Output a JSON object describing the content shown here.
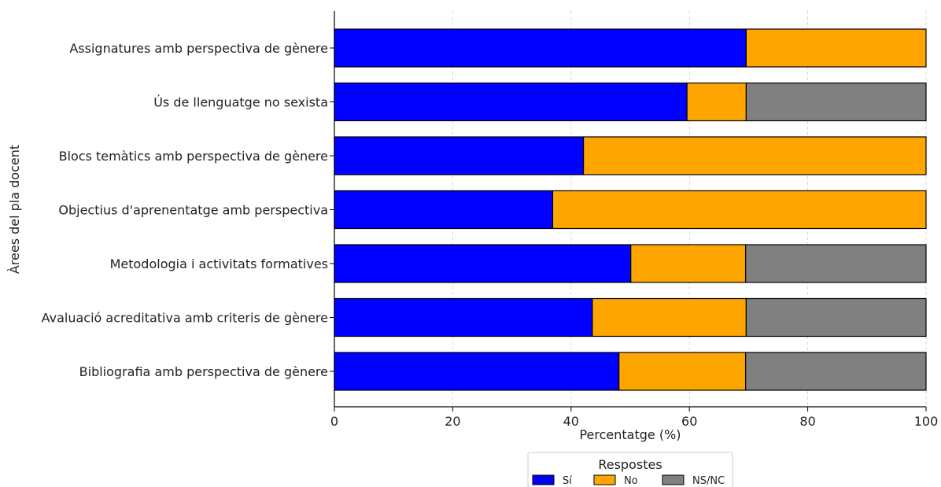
{
  "chart_data": {
    "type": "bar",
    "orientation": "horizontal",
    "stacked": true,
    "title": "",
    "xlabel": "Percentatge (%)",
    "ylabel": "Àrees del pla docent",
    "xlim": [
      0,
      100
    ],
    "xticks": [
      0,
      20,
      40,
      60,
      80,
      100
    ],
    "grid": true,
    "categories": [
      "Assignatures amb perspectiva de gènere",
      "Ús de llenguatge no sexista",
      "Blocs temàtics amb perspectiva de gènere",
      "Objectius d'aprenentatge amb perspectiva",
      "Metodologia i activitats formatives",
      "Avaluació acreditativa amb criteris de gènere",
      "Bibliografia amb perspectiva de gènere"
    ],
    "series": [
      {
        "name": "Sí",
        "color": "#0000ff",
        "values": [
          69.6,
          59.6,
          42.1,
          36.9,
          50.1,
          43.6,
          48.1
        ]
      },
      {
        "name": "No",
        "color": "#ffa500",
        "values": [
          30.4,
          10.0,
          57.9,
          63.1,
          19.4,
          26.0,
          21.4
        ]
      },
      {
        "name": "NS/NC",
        "color": "#808080",
        "values": [
          0,
          30.4,
          0,
          0,
          30.5,
          30.4,
          30.5
        ]
      }
    ],
    "legend": {
      "title": "Respostes",
      "placement": "bottom-center"
    }
  }
}
